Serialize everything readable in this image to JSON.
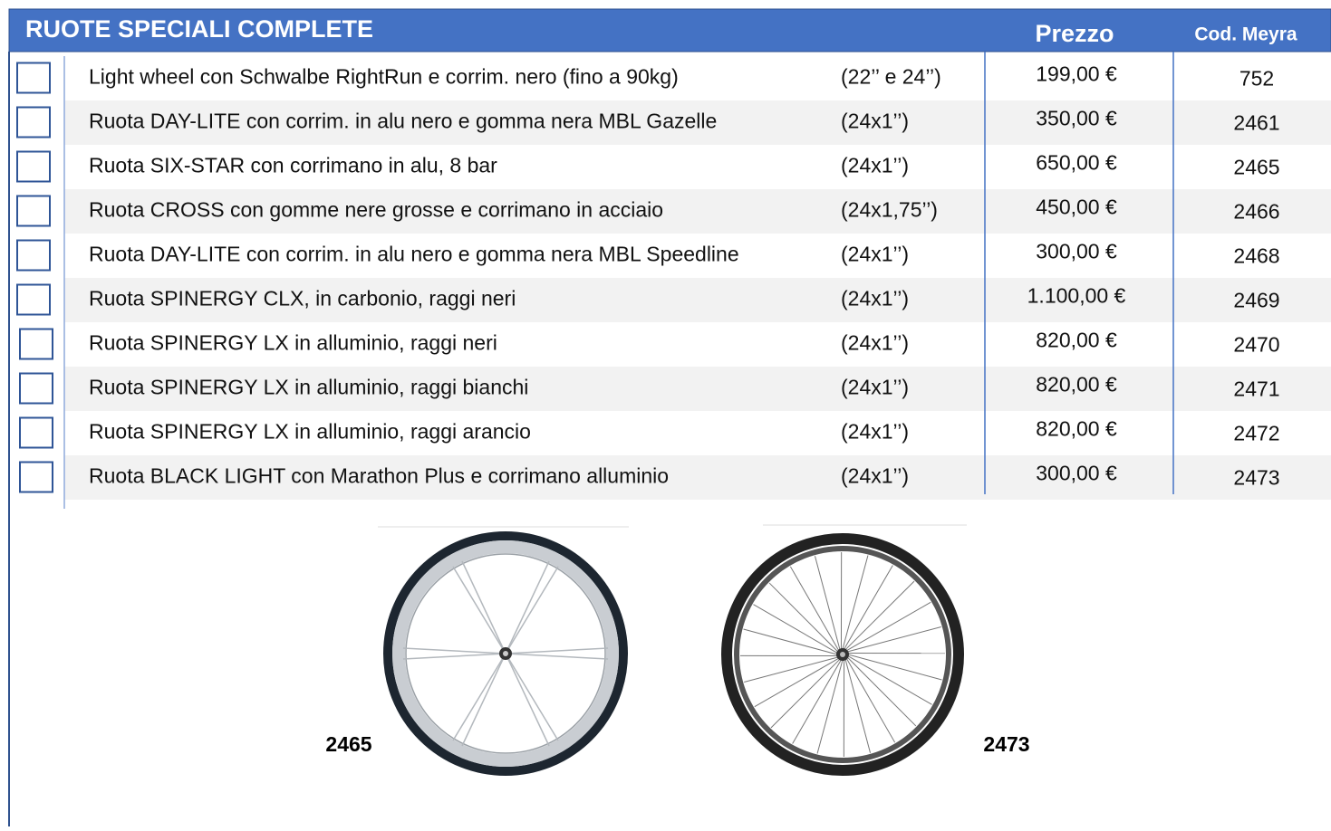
{
  "header": {
    "title": "RUOTE SPECIALI COMPLETE",
    "price_header": "Prezzo",
    "code_header": "Cod. Meyra"
  },
  "table": {
    "rows": [
      {
        "description": "Light wheel con Schwalbe RightRun e corrim. nero (fino a 90kg)",
        "size": "(22’’ e 24’’)",
        "price": "199,00 €",
        "code": "752"
      },
      {
        "description": "Ruota DAY-LITE con corrim. in alu nero e gomma nera MBL Gazelle",
        "size": "(24x1’’)",
        "price": "350,00 €",
        "code": "2461"
      },
      {
        "description": "Ruota SIX-STAR con corrimano in alu, 8 bar",
        "size": "(24x1’’)",
        "price": "650,00 €",
        "code": "2465"
      },
      {
        "description": "Ruota CROSS con gomme nere grosse e corrimano in acciaio",
        "size": "(24x1,75’’)",
        "price": "450,00 €",
        "code": "2466"
      },
      {
        "description": "Ruota DAY-LITE con corrim. in alu nero e gomma nera MBL Speedline",
        "size": "(24x1’’)",
        "price": "300,00 €",
        "code": "2468"
      },
      {
        "description": "Ruota SPINERGY CLX, in carbonio, raggi neri",
        "size": "(24x1’’)",
        "price": "1.100,00 €",
        "code": "2469"
      },
      {
        "description": "Ruota SPINERGY LX in alluminio, raggi neri",
        "size": "(24x1’’)",
        "price": "820,00 €",
        "code": "2470"
      },
      {
        "description": "Ruota SPINERGY LX in alluminio, raggi bianchi",
        "size": "(24x1’’)",
        "price": "820,00 €",
        "code": "2471"
      },
      {
        "description": "Ruota SPINERGY LX in alluminio, raggi arancio",
        "size": "(24x1’’)",
        "price": "820,00 €",
        "code": "2472"
      },
      {
        "description": "Ruota BLACK LIGHT con Marathon Plus e corrimano alluminio",
        "size": "(24x1’’)",
        "price": "300,00 €",
        "code": "2473"
      }
    ]
  },
  "images": {
    "captions": [
      "2465",
      "2473"
    ]
  }
}
